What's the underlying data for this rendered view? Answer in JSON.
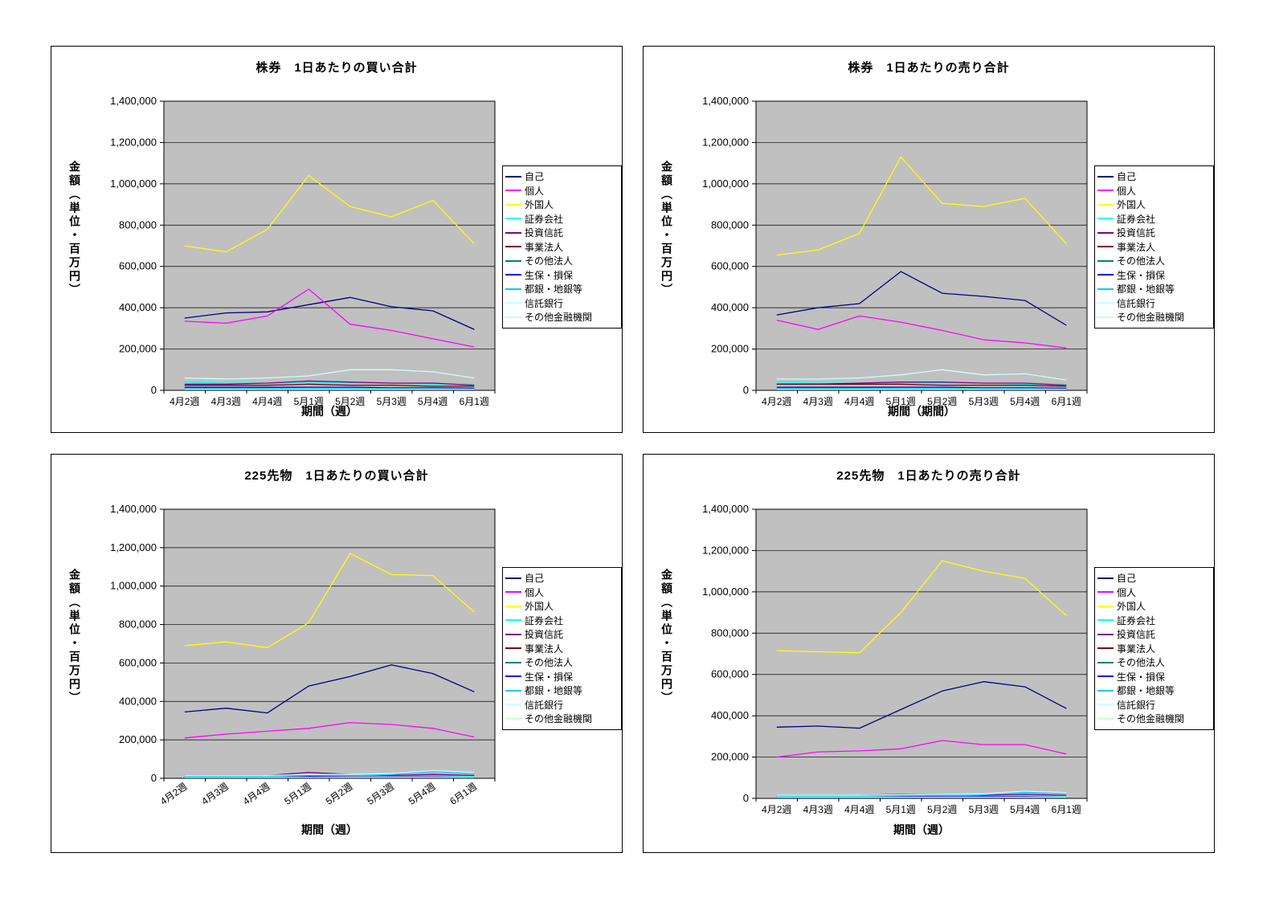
{
  "style": {
    "plot_bg": "#C0C0C0",
    "grid_color": "#000000",
    "panel_border": "#000000",
    "page_bg": "#FFFFFF"
  },
  "chart_data": [
    {
      "type": "line",
      "title": "株券　1日あたりの買い合計",
      "xlabel": "期間（週）",
      "ylabel": "金額（単位・百万円）",
      "legend_position": "right",
      "grid": true,
      "ylim": [
        0,
        1400000
      ],
      "ytick_step": 200000,
      "x_label_rotation": 0,
      "categories": [
        "4月2週",
        "4月3週",
        "4月4週",
        "5月1週",
        "5月2週",
        "5月3週",
        "5月4週",
        "6月1週"
      ],
      "series": [
        {
          "name": "自己",
          "color": "#000080",
          "values": [
            350000,
            375000,
            380000,
            415000,
            450000,
            405000,
            385000,
            295000
          ]
        },
        {
          "name": "個人",
          "color": "#FF00FF",
          "values": [
            335000,
            325000,
            360000,
            490000,
            320000,
            290000,
            250000,
            210000
          ]
        },
        {
          "name": "外国人",
          "color": "#FFFF00",
          "values": [
            700000,
            670000,
            780000,
            1040000,
            890000,
            840000,
            920000,
            710000
          ]
        },
        {
          "name": "証券会社",
          "color": "#00FFFF",
          "values": [
            40000,
            35000,
            35000,
            40000,
            35000,
            35000,
            30000,
            30000
          ]
        },
        {
          "name": "投資信託",
          "color": "#800080",
          "values": [
            30000,
            30000,
            35000,
            45000,
            40000,
            35000,
            35000,
            25000
          ]
        },
        {
          "name": "事業法人",
          "color": "#800000",
          "values": [
            25000,
            25000,
            25000,
            30000,
            25000,
            25000,
            20000,
            20000
          ]
        },
        {
          "name": "その他法人",
          "color": "#008080",
          "values": [
            10000,
            10000,
            10000,
            10000,
            10000,
            10000,
            10000,
            8000
          ]
        },
        {
          "name": "生保・損保",
          "color": "#0000FF",
          "values": [
            15000,
            15000,
            15000,
            15000,
            15000,
            12000,
            12000,
            10000
          ]
        },
        {
          "name": "都銀・地銀等",
          "color": "#00CCFF",
          "values": [
            8000,
            8000,
            8000,
            10000,
            10000,
            8000,
            8000,
            6000
          ]
        },
        {
          "name": "信託銀行",
          "color": "#CCFFFF",
          "values": [
            60000,
            55000,
            60000,
            70000,
            100000,
            100000,
            90000,
            60000
          ]
        },
        {
          "name": "その他金融機関",
          "color": "#CCFFCC",
          "values": [
            5000,
            5000,
            5000,
            5000,
            5000,
            5000,
            5000,
            5000
          ]
        }
      ]
    },
    {
      "type": "line",
      "title": "株券　1日あたりの売り合計",
      "xlabel": "期間（期間）",
      "ylabel": "金額（単位・百万円）",
      "legend_position": "right",
      "grid": true,
      "ylim": [
        0,
        1400000
      ],
      "ytick_step": 200000,
      "x_label_rotation": 0,
      "categories": [
        "4月2週",
        "4月3週",
        "4月4週",
        "5月1週",
        "5月2週",
        "5月3週",
        "5月4週",
        "6月1週"
      ],
      "series": [
        {
          "name": "自己",
          "color": "#000080",
          "values": [
            365000,
            400000,
            420000,
            575000,
            470000,
            455000,
            435000,
            315000
          ]
        },
        {
          "name": "個人",
          "color": "#FF00FF",
          "values": [
            340000,
            295000,
            360000,
            330000,
            290000,
            245000,
            230000,
            205000
          ]
        },
        {
          "name": "外国人",
          "color": "#FFFF00",
          "values": [
            655000,
            680000,
            760000,
            1130000,
            905000,
            890000,
            930000,
            710000
          ]
        },
        {
          "name": "証券会社",
          "color": "#00FFFF",
          "values": [
            40000,
            35000,
            35000,
            40000,
            35000,
            35000,
            30000,
            30000
          ]
        },
        {
          "name": "投資信託",
          "color": "#800080",
          "values": [
            30000,
            30000,
            35000,
            40000,
            40000,
            35000,
            35000,
            25000
          ]
        },
        {
          "name": "事業法人",
          "color": "#800000",
          "values": [
            30000,
            30000,
            30000,
            30000,
            25000,
            25000,
            25000,
            20000
          ]
        },
        {
          "name": "その他法人",
          "color": "#008080",
          "values": [
            10000,
            10000,
            10000,
            10000,
            10000,
            10000,
            10000,
            8000
          ]
        },
        {
          "name": "生保・損保",
          "color": "#0000FF",
          "values": [
            15000,
            15000,
            15000,
            15000,
            15000,
            12000,
            12000,
            10000
          ]
        },
        {
          "name": "都銀・地銀等",
          "color": "#00CCFF",
          "values": [
            8000,
            8000,
            8000,
            10000,
            10000,
            8000,
            8000,
            6000
          ]
        },
        {
          "name": "信託銀行",
          "color": "#CCFFFF",
          "values": [
            55000,
            55000,
            60000,
            75000,
            100000,
            75000,
            80000,
            50000
          ]
        },
        {
          "name": "その他金融機関",
          "color": "#CCFFCC",
          "values": [
            5000,
            5000,
            5000,
            5000,
            5000,
            5000,
            5000,
            5000
          ]
        }
      ]
    },
    {
      "type": "line",
      "title": "225先物　1日あたりの買い合計",
      "xlabel": "期間（週）",
      "ylabel": "金額（単位・百万円）",
      "legend_position": "right",
      "grid": true,
      "ylim": [
        0,
        1400000
      ],
      "ytick_step": 200000,
      "x_label_rotation": 35,
      "categories": [
        "4月2週",
        "4月3週",
        "4月4週",
        "5月1週",
        "5月2週",
        "5月3週",
        "5月4週",
        "6月1週"
      ],
      "series": [
        {
          "name": "自己",
          "color": "#000080",
          "values": [
            345000,
            365000,
            340000,
            480000,
            530000,
            590000,
            545000,
            450000
          ]
        },
        {
          "name": "個人",
          "color": "#FF00FF",
          "values": [
            210000,
            230000,
            245000,
            260000,
            290000,
            280000,
            260000,
            215000
          ]
        },
        {
          "name": "外国人",
          "color": "#FFFF00",
          "values": [
            690000,
            710000,
            680000,
            810000,
            1170000,
            1060000,
            1055000,
            865000
          ]
        },
        {
          "name": "証券会社",
          "color": "#00FFFF",
          "values": [
            10000,
            10000,
            10000,
            15000,
            15000,
            15000,
            15000,
            10000
          ]
        },
        {
          "name": "投資信託",
          "color": "#800080",
          "values": [
            15000,
            15000,
            15000,
            30000,
            20000,
            15000,
            20000,
            15000
          ]
        },
        {
          "name": "事業法人",
          "color": "#800000",
          "values": [
            5000,
            5000,
            5000,
            5000,
            5000,
            5000,
            5000,
            5000
          ]
        },
        {
          "name": "その他法人",
          "color": "#008080",
          "values": [
            5000,
            5000,
            5000,
            5000,
            5000,
            5000,
            5000,
            5000
          ]
        },
        {
          "name": "生保・損保",
          "color": "#0000FF",
          "values": [
            5000,
            5000,
            5000,
            10000,
            8000,
            8000,
            8000,
            5000
          ]
        },
        {
          "name": "都銀・地銀等",
          "color": "#00CCFF",
          "values": [
            10000,
            10000,
            10000,
            15000,
            15000,
            20000,
            35000,
            25000
          ]
        },
        {
          "name": "信託銀行",
          "color": "#CCFFFF",
          "values": [
            15000,
            15000,
            15000,
            20000,
            20000,
            25000,
            40000,
            30000
          ]
        },
        {
          "name": "その他金融機関",
          "color": "#CCFFCC",
          "values": [
            5000,
            5000,
            5000,
            5000,
            5000,
            5000,
            5000,
            5000
          ]
        }
      ]
    },
    {
      "type": "line",
      "title": "225先物　1日あたりの売り合計",
      "xlabel": "期間（週）",
      "ylabel": "金額（単位・百万円）",
      "legend_position": "right",
      "grid": true,
      "ylim": [
        0,
        1400000
      ],
      "ytick_step": 200000,
      "x_label_rotation": 0,
      "categories": [
        "4月2週",
        "4月3週",
        "4月4週",
        "5月1週",
        "5月2週",
        "5月3週",
        "5月4週",
        "6月1週"
      ],
      "series": [
        {
          "name": "自己",
          "color": "#000080",
          "values": [
            345000,
            350000,
            340000,
            430000,
            520000,
            565000,
            540000,
            435000
          ]
        },
        {
          "name": "個人",
          "color": "#FF00FF",
          "values": [
            200000,
            225000,
            230000,
            240000,
            280000,
            260000,
            260000,
            215000
          ]
        },
        {
          "name": "外国人",
          "color": "#FFFF00",
          "values": [
            715000,
            710000,
            705000,
            900000,
            1150000,
            1100000,
            1065000,
            885000
          ]
        },
        {
          "name": "証券会社",
          "color": "#00FFFF",
          "values": [
            10000,
            10000,
            10000,
            15000,
            15000,
            15000,
            15000,
            10000
          ]
        },
        {
          "name": "投資信託",
          "color": "#800080",
          "values": [
            15000,
            15000,
            15000,
            20000,
            20000,
            15000,
            20000,
            15000
          ]
        },
        {
          "name": "事業法人",
          "color": "#800000",
          "values": [
            5000,
            5000,
            5000,
            5000,
            5000,
            5000,
            5000,
            5000
          ]
        },
        {
          "name": "その他法人",
          "color": "#008080",
          "values": [
            5000,
            5000,
            5000,
            5000,
            5000,
            5000,
            5000,
            5000
          ]
        },
        {
          "name": "生保・損保",
          "color": "#0000FF",
          "values": [
            5000,
            5000,
            5000,
            8000,
            8000,
            8000,
            8000,
            5000
          ]
        },
        {
          "name": "都銀・地銀等",
          "color": "#00CCFF",
          "values": [
            10000,
            10000,
            10000,
            12000,
            15000,
            18000,
            30000,
            25000
          ]
        },
        {
          "name": "信託銀行",
          "color": "#CCFFFF",
          "values": [
            15000,
            15000,
            15000,
            18000,
            20000,
            22000,
            35000,
            28000
          ]
        },
        {
          "name": "その他金融機関",
          "color": "#CCFFCC",
          "values": [
            5000,
            5000,
            5000,
            5000,
            5000,
            5000,
            5000,
            5000
          ]
        }
      ]
    }
  ]
}
